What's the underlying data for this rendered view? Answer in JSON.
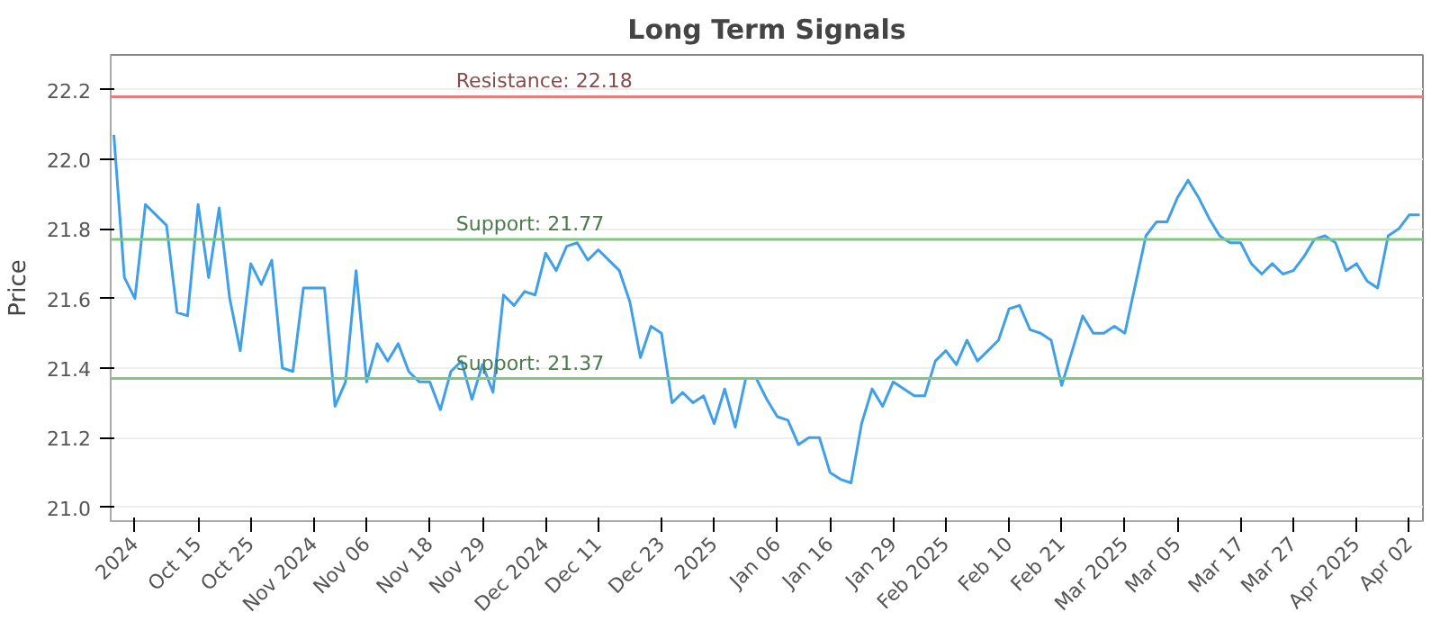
{
  "chart_data": {
    "type": "line",
    "title": "Long Term Signals",
    "ylabel": "Price",
    "categories": [
      null,
      null,
      "2024",
      null,
      null,
      null,
      null,
      null,
      "Oct 15",
      null,
      null,
      null,
      null,
      "Oct 25",
      null,
      null,
      null,
      null,
      null,
      "Nov 2024",
      null,
      null,
      null,
      null,
      "Nov 06",
      null,
      null,
      null,
      null,
      null,
      "Nov 18",
      null,
      null,
      null,
      null,
      "Nov 29",
      null,
      null,
      null,
      null,
      null,
      "Dec 2024",
      null,
      null,
      null,
      null,
      "Dec 11",
      null,
      null,
      null,
      null,
      null,
      "Dec 23",
      null,
      null,
      null,
      null,
      "2025",
      null,
      null,
      null,
      null,
      null,
      "Jan 06",
      null,
      null,
      null,
      null,
      "Jan 16",
      null,
      null,
      null,
      null,
      null,
      "Jan 29",
      null,
      null,
      null,
      null,
      "Feb 2025",
      null,
      null,
      null,
      null,
      null,
      "Feb 10",
      null,
      null,
      null,
      null,
      "Feb 21",
      null,
      null,
      null,
      null,
      null,
      "Mar 2025",
      null,
      null,
      null,
      null,
      "Mar 05",
      null,
      null,
      null,
      null,
      null,
      "Mar 17",
      null,
      null,
      null,
      null,
      "Mar 27",
      null,
      null,
      null,
      null,
      null,
      "Apr 2025",
      null,
      null,
      null,
      null,
      "Apr 02",
      null
    ],
    "series": [
      {
        "color": "#3fa0e8",
        "values": [
          22.07,
          21.66,
          21.6,
          21.87,
          21.84,
          21.81,
          21.56,
          21.55,
          21.87,
          21.66,
          21.86,
          21.6,
          21.45,
          21.7,
          21.64,
          21.71,
          21.4,
          21.39,
          21.63,
          21.63,
          21.63,
          21.29,
          21.36,
          21.68,
          21.36,
          21.47,
          21.42,
          21.47,
          21.39,
          21.36,
          21.36,
          21.28,
          21.39,
          21.42,
          21.31,
          21.41,
          21.33,
          21.61,
          21.58,
          21.62,
          21.61,
          21.73,
          21.68,
          21.75,
          21.76,
          21.71,
          21.74,
          21.71,
          21.68,
          21.59,
          21.43,
          21.52,
          21.5,
          21.3,
          21.33,
          21.3,
          21.32,
          21.24,
          21.34,
          21.23,
          21.37,
          21.37,
          21.31,
          21.26,
          21.25,
          21.18,
          21.2,
          21.2,
          21.1,
          21.08,
          21.07,
          21.24,
          21.34,
          21.29,
          21.36,
          21.34,
          21.32,
          21.32,
          21.42,
          21.45,
          21.41,
          21.48,
          21.42,
          21.45,
          21.48,
          21.57,
          21.58,
          21.51,
          21.5,
          21.48,
          21.35,
          21.45,
          21.55,
          21.5,
          21.5,
          21.52,
          21.5,
          21.64,
          21.78,
          21.82,
          21.82,
          21.89,
          21.94,
          21.89,
          21.83,
          21.78,
          21.76,
          21.76,
          21.7,
          21.67,
          21.7,
          21.67,
          21.68,
          21.72,
          21.77,
          21.78,
          21.76,
          21.68,
          21.7,
          21.65,
          21.63,
          21.78,
          21.8,
          21.84,
          21.84
        ]
      }
    ],
    "ylim": [
      20.96,
      22.3
    ],
    "yticks": [
      {
        "value": 21.0,
        "label": "21.0"
      },
      {
        "value": 21.2,
        "label": "21.2"
      },
      {
        "value": 21.4,
        "label": "21.4"
      },
      {
        "value": 21.6,
        "label": "21.6"
      },
      {
        "value": 21.8,
        "label": "21.8"
      },
      {
        "value": 22.0,
        "label": "22.0"
      },
      {
        "value": 22.2,
        "label": "22.2"
      }
    ],
    "ref_lines": [
      {
        "axis": "y",
        "value": 22.18,
        "label": "Resistance: 22.18",
        "color": "#e08080"
      },
      {
        "axis": "y",
        "value": 21.77,
        "label": "Support: 21.77",
        "color": "#80c880"
      },
      {
        "axis": "y",
        "value": 21.37,
        "label": "Support: 21.37",
        "color": "#80c880"
      }
    ],
    "grid": "y",
    "marker": "none",
    "line_style": "solid"
  }
}
